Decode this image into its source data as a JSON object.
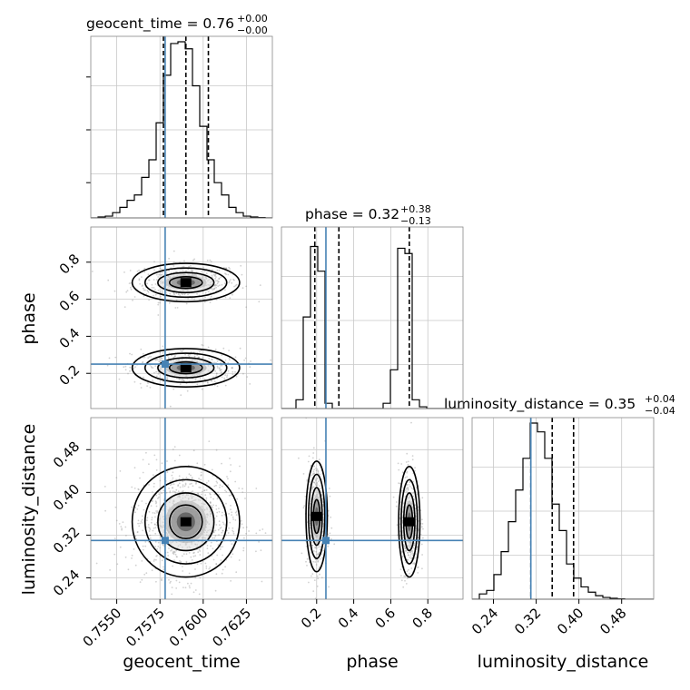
{
  "colors": {
    "truth": "#4682b4",
    "hist": "#000000",
    "grid": "#c8c8c8",
    "scatter": "#9a9a9a"
  },
  "chart_data": {
    "type": "corner",
    "parameters": [
      "geocent_time",
      "phase",
      "luminosity_distance"
    ],
    "titles": [
      {
        "param": "geocent_time",
        "text": "geocent_time = 0.76",
        "sup": "+0.00",
        "sub": "−0.00"
      },
      {
        "param": "phase",
        "text": "phase = 0.32",
        "sup": "+0.38",
        "sub": "−0.13"
      },
      {
        "param": "luminosity_distance",
        "text": "luminosity_distance = 0.35",
        "sup": "+0.04",
        "sub": "−0.04"
      }
    ],
    "ranges": {
      "geocent_time": [
        0.7535,
        0.764
      ],
      "phase": [
        0.01,
        0.99
      ],
      "luminosity_distance": [
        0.2,
        0.54
      ]
    },
    "ticks": {
      "geocent_time": [
        "0.7550",
        "0.7575",
        "0.7600",
        "0.7625"
      ],
      "phase": [
        "0.2",
        "0.4",
        "0.6",
        "0.8"
      ],
      "luminosity_distance": [
        "0.24",
        "0.32",
        "0.40",
        "0.48"
      ]
    },
    "truths": {
      "geocent_time": 0.7578,
      "phase": 0.25,
      "luminosity_distance": 0.31
    },
    "quantiles": {
      "geocent_time": [
        0.7577,
        0.759,
        0.7603
      ],
      "phase": [
        0.19,
        0.32,
        0.7
      ],
      "luminosity_distance": [
        0.31,
        0.35,
        0.39
      ]
    },
    "histograms": {
      "geocent_time": {
        "edges_start": 0.7535,
        "bin_width": 0.00042,
        "counts": [
          0,
          0.005,
          0.01,
          0.03,
          0.06,
          0.1,
          0.13,
          0.23,
          0.33,
          0.54,
          0.81,
          0.99,
          1.0,
          0.96,
          0.75,
          0.52,
          0.33,
          0.2,
          0.13,
          0.06,
          0.03,
          0.01,
          0.005,
          0.002,
          0
        ]
      },
      "phase": {
        "edges_start": 0.01,
        "bin_width": 0.0392,
        "counts": [
          0,
          0,
          0.05,
          0.52,
          0.92,
          0.78,
          0.03,
          0,
          0,
          0,
          0,
          0,
          0,
          0,
          0.03,
          0.22,
          0.91,
          0.88,
          0.05,
          0.01,
          0,
          0,
          0,
          0,
          0
        ]
      },
      "luminosity_distance": {
        "edges_start": 0.2,
        "bin_width": 0.0136,
        "counts": [
          0,
          0.03,
          0.05,
          0.14,
          0.27,
          0.44,
          0.62,
          0.8,
          1.0,
          0.95,
          0.8,
          0.54,
          0.39,
          0.2,
          0.12,
          0.07,
          0.04,
          0.02,
          0.01,
          0.005,
          0.002,
          0,
          0,
          0,
          0
        ]
      }
    },
    "axis_labels": {
      "geocent_time": "geocent_time",
      "phase": "phase",
      "luminosity_distance": "luminosity_distance"
    },
    "grid": true
  }
}
